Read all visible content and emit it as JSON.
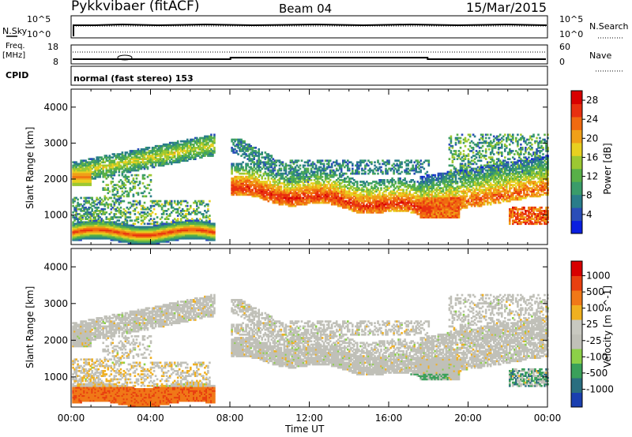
{
  "header": {
    "radar": "Pykkvibaer (fitACF)",
    "beam": "Beam 04",
    "date": "15/Mar/2015"
  },
  "noise_panel": {
    "left_label": "N.Sky",
    "right_label": "N.Search",
    "left_ticks": [
      "10^5",
      "10^0"
    ],
    "right_ticks": [
      "10^5",
      "10^0"
    ]
  },
  "freq_panel": {
    "left_label_1": "Freq.",
    "left_label_2": "[MHz]",
    "right_label": "Nave",
    "left_ticks": [
      "18",
      "8"
    ],
    "right_ticks": [
      "60",
      "0"
    ],
    "freq_series": {
      "x": [
        "00:00",
        "08:00",
        "08:00",
        "18:00",
        "18:00",
        "24:00"
      ],
      "y": [
        10.5,
        10.5,
        11.3,
        11.3,
        10.5,
        10.5
      ]
    }
  },
  "cpid": {
    "label": "CPID",
    "mode": "normal (fast stereo) 153"
  },
  "chart_data": [
    {
      "type": "heatmap",
      "xlabel": "",
      "ylabel": "Slant Range [km]",
      "xlim": [
        0,
        24
      ],
      "ylim": [
        180,
        4500
      ],
      "yticks": [
        "1000",
        "2000",
        "3000",
        "4000"
      ],
      "colorbar": {
        "label": "Power [dB]",
        "ticks": [
          "4",
          "8",
          "12",
          "16",
          "20",
          "24",
          "28"
        ],
        "range": [
          0,
          30
        ],
        "colors": [
          "#0a1fe0",
          "#2a4db8",
          "#2a7d8a",
          "#3a9c6a",
          "#58b048",
          "#9cc832",
          "#e8d020",
          "#f0a018",
          "#f06a10",
          "#e83010",
          "#d80000"
        ]
      }
    },
    {
      "type": "heatmap",
      "xlabel": "Time UT",
      "ylabel": "Slant Range [km]",
      "xlim": [
        0,
        24
      ],
      "ylim": [
        180,
        4500
      ],
      "xticks": [
        "00:00",
        "04:00",
        "08:00",
        "12:00",
        "16:00",
        "20:00",
        "00:00"
      ],
      "yticks": [
        "1000",
        "2000",
        "3000",
        "4000"
      ],
      "colorbar": {
        "label": "Velocity [m s^-1]",
        "ticks": [
          "1000",
          "500",
          "100",
          "25",
          "-25",
          "-100",
          "-500",
          "-1000"
        ],
        "colors": [
          "#1a3fb0",
          "#2a6e80",
          "#3aa05a",
          "#8cd048",
          "#c0c0b8",
          "#c8c8c0",
          "#f0b020",
          "#f07818",
          "#e84010",
          "#d80000"
        ]
      }
    }
  ]
}
